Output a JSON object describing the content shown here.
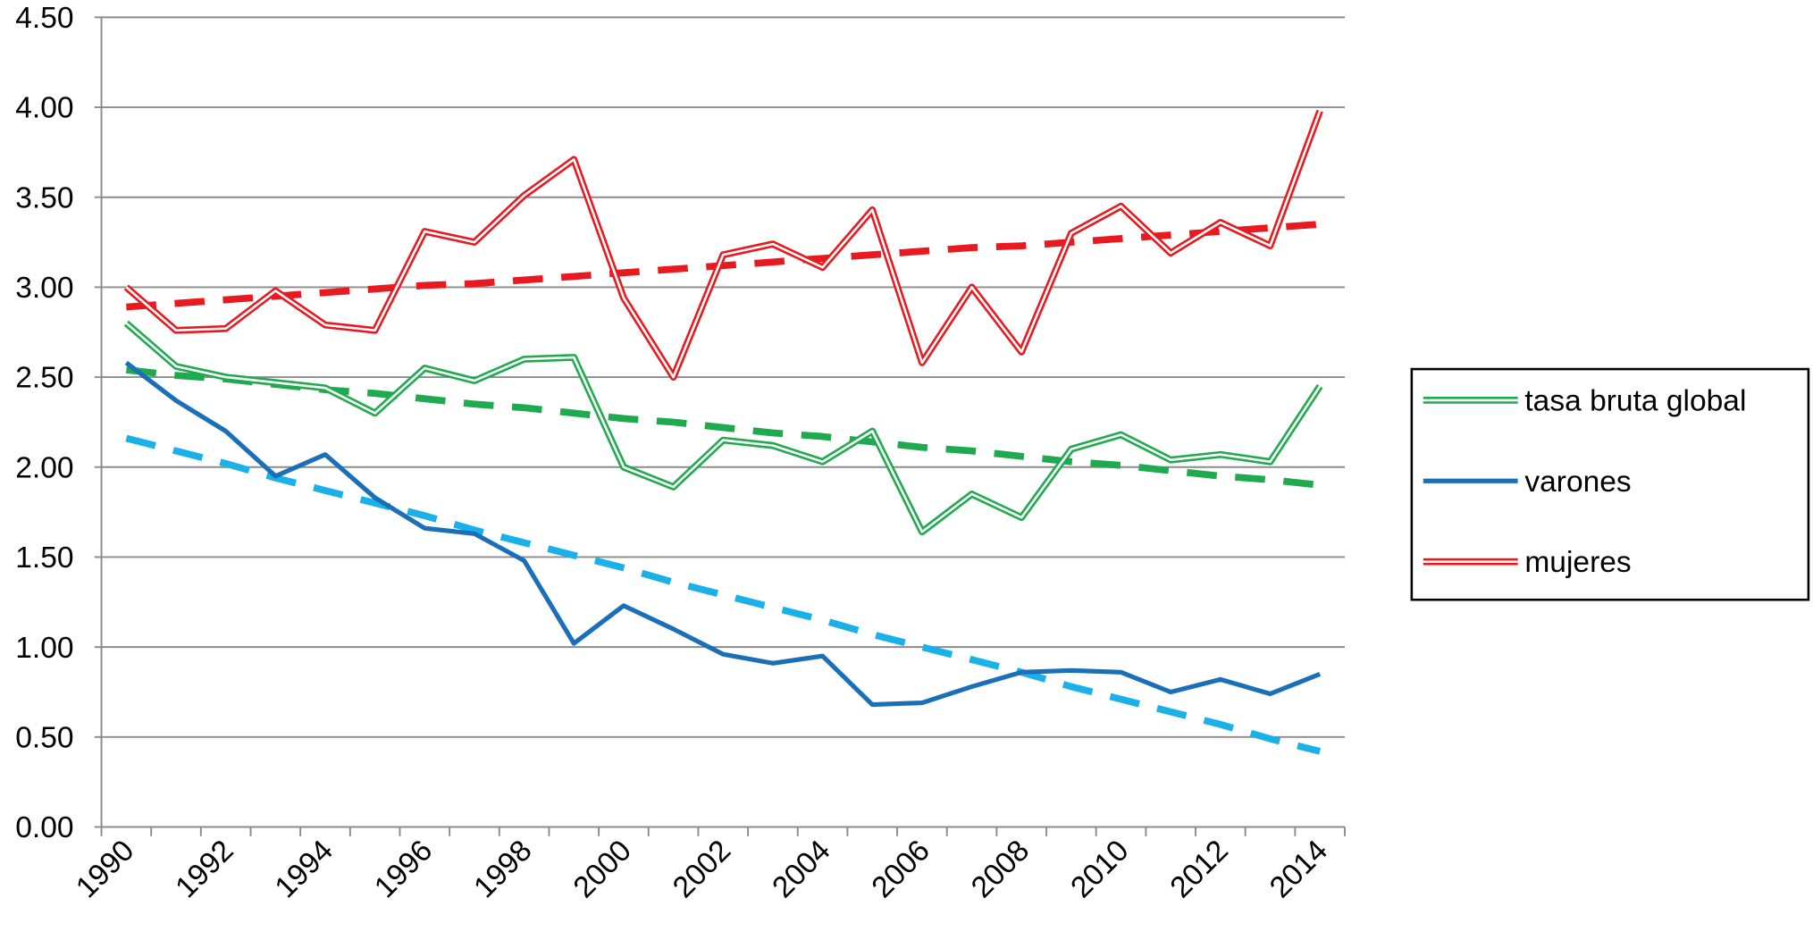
{
  "chart_data": {
    "type": "line",
    "categories": [
      "1990",
      null,
      "1992",
      null,
      "1994",
      null,
      "1996",
      null,
      "1998",
      null,
      "2000",
      null,
      "2002",
      null,
      "2004",
      null,
      "2006",
      null,
      "2008",
      null,
      "2010",
      null,
      "2012",
      null,
      "2014"
    ],
    "ylim": [
      0,
      4.5
    ],
    "yticks": [
      {
        "value": 0,
        "label": "0.00"
      },
      {
        "value": 0.5,
        "label": "0.50"
      },
      {
        "value": 1,
        "label": "1.00"
      },
      {
        "value": 1.5,
        "label": "1.50"
      },
      {
        "value": 2,
        "label": "2.00"
      },
      {
        "value": 2.5,
        "label": "2.50"
      },
      {
        "value": 3,
        "label": "3.00"
      },
      {
        "value": 3.5,
        "label": "3.50"
      },
      {
        "value": 4,
        "label": "4.00"
      },
      {
        "value": 4.5,
        "label": "4.50"
      }
    ],
    "grid": true,
    "series": [
      {
        "name": "tasa bruta global",
        "color": "#1faa4f",
        "style": "double",
        "values": [
          2.8,
          2.56,
          2.5,
          2.47,
          2.44,
          2.3,
          2.55,
          2.48,
          2.6,
          2.61,
          2.0,
          1.89,
          2.15,
          2.12,
          2.03,
          2.2,
          1.64,
          1.85,
          1.72,
          2.1,
          2.18,
          2.04,
          2.07,
          2.03,
          2.45
        ]
      },
      {
        "name": "varones",
        "color": "#1b6fb8",
        "style": "solid",
        "values": [
          2.58,
          2.37,
          2.2,
          1.95,
          2.07,
          1.83,
          1.66,
          1.63,
          1.48,
          1.02,
          1.23,
          1.1,
          0.96,
          0.91,
          0.95,
          0.68,
          0.69,
          0.78,
          0.86,
          0.87,
          0.86,
          0.75,
          0.82,
          0.74,
          0.85
        ]
      },
      {
        "name": "mujeres",
        "color": "#e8191f",
        "style": "double",
        "values": [
          3.0,
          2.76,
          2.77,
          2.98,
          2.79,
          2.76,
          3.31,
          3.25,
          3.51,
          3.71,
          2.94,
          2.5,
          3.18,
          3.24,
          3.11,
          3.43,
          2.58,
          3.0,
          2.64,
          3.3,
          3.45,
          3.19,
          3.36,
          3.23,
          3.98
        ]
      },
      {
        "color": "#e8191f",
        "style": "dashed",
        "values": [
          2.89,
          2.91,
          2.93,
          2.95,
          2.97,
          2.99,
          3.01,
          3.02,
          3.04,
          3.06,
          3.08,
          3.1,
          3.12,
          3.14,
          3.16,
          3.18,
          3.2,
          3.22,
          3.23,
          3.25,
          3.27,
          3.29,
          3.31,
          3.33,
          3.35
        ]
      },
      {
        "color": "#1faa4f",
        "style": "dashed",
        "values": [
          2.54,
          2.51,
          2.49,
          2.46,
          2.43,
          2.41,
          2.38,
          2.35,
          2.33,
          2.3,
          2.27,
          2.25,
          2.22,
          2.19,
          2.17,
          2.14,
          2.11,
          2.09,
          2.06,
          2.03,
          2.01,
          1.98,
          1.95,
          1.93,
          1.9
        ]
      },
      {
        "color": "#1ab0e8",
        "style": "dashed",
        "values": [
          2.16,
          2.09,
          2.02,
          1.94,
          1.87,
          1.8,
          1.73,
          1.65,
          1.58,
          1.51,
          1.44,
          1.36,
          1.29,
          1.22,
          1.15,
          1.07,
          1.0,
          0.93,
          0.86,
          0.78,
          0.71,
          0.64,
          0.57,
          0.49,
          0.42
        ]
      }
    ]
  }
}
